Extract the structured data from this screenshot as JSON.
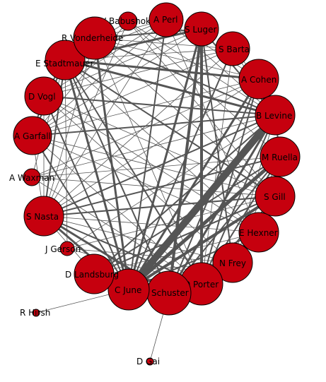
{
  "graph": {
    "node_color": "#c6000e",
    "edge_color": "#555555",
    "nodes": [
      {
        "id": "babushok",
        "label": "V Babushok",
        "weight": 1
      },
      {
        "id": "perl",
        "label": "A Perl",
        "weight": 3
      },
      {
        "id": "luger",
        "label": "S Luger",
        "weight": 4
      },
      {
        "id": "barta",
        "label": "S Barta",
        "weight": 3
      },
      {
        "id": "cohen",
        "label": "A Cohen",
        "weight": 4
      },
      {
        "id": "levine",
        "label": "B Levine",
        "weight": 4
      },
      {
        "id": "ruella",
        "label": "M Ruella",
        "weight": 4
      },
      {
        "id": "gill",
        "label": "S Gill",
        "weight": 4
      },
      {
        "id": "hexner",
        "label": "E Hexner",
        "weight": 4
      },
      {
        "id": "frey",
        "label": "N Frey",
        "weight": 4
      },
      {
        "id": "porter",
        "label": "D Porter",
        "weight": 4
      },
      {
        "id": "schuster",
        "label": "Schuster",
        "weight": 5
      },
      {
        "id": "june",
        "label": "C June",
        "weight": 5
      },
      {
        "id": "landsburg",
        "label": "D Landsburg",
        "weight": 4
      },
      {
        "id": "gerson",
        "label": "J Gerson",
        "weight": 1
      },
      {
        "id": "nasta",
        "label": "S Nasta",
        "weight": 4
      },
      {
        "id": "waxman",
        "label": "A Waxman",
        "weight": 1
      },
      {
        "id": "garfall",
        "label": "A Garfall",
        "weight": 4
      },
      {
        "id": "vogl",
        "label": "D Vogl",
        "weight": 4
      },
      {
        "id": "stadtmauer",
        "label": "E Stadtmauer",
        "weight": 5
      },
      {
        "id": "vonderheide",
        "label": "R Vonderheide",
        "weight": 4
      },
      {
        "id": "hirsh",
        "label": "R Hirsh",
        "weight": 0
      },
      {
        "id": "gai",
        "label": "D Gai",
        "weight": 0
      }
    ],
    "edges": [
      {
        "source": "june",
        "target": "levine",
        "weight": 9
      },
      {
        "source": "june",
        "target": "ruella",
        "weight": 5
      },
      {
        "source": "june",
        "target": "gill",
        "weight": 4
      },
      {
        "source": "june",
        "target": "luger",
        "weight": 3
      },
      {
        "source": "june",
        "target": "perl",
        "weight": 2
      },
      {
        "source": "june",
        "target": "cohen",
        "weight": 3
      },
      {
        "source": "june",
        "target": "barta",
        "weight": 2
      },
      {
        "source": "june",
        "target": "hexner",
        "weight": 2
      },
      {
        "source": "june",
        "target": "stadtmauer",
        "weight": 3
      },
      {
        "source": "june",
        "target": "vonderheide",
        "weight": 3
      },
      {
        "source": "june",
        "target": "nasta",
        "weight": 3
      },
      {
        "source": "june",
        "target": "vogl",
        "weight": 2
      },
      {
        "source": "june",
        "target": "garfall",
        "weight": 2
      },
      {
        "source": "june",
        "target": "landsburg",
        "weight": 3
      },
      {
        "source": "june",
        "target": "schuster",
        "weight": 3
      },
      {
        "source": "june",
        "target": "porter",
        "weight": 2
      },
      {
        "source": "june",
        "target": "frey",
        "weight": 2
      },
      {
        "source": "june",
        "target": "hirsh",
        "weight": 1
      },
      {
        "source": "schuster",
        "target": "luger",
        "weight": 4
      },
      {
        "source": "schuster",
        "target": "levine",
        "weight": 3
      },
      {
        "source": "schuster",
        "target": "porter",
        "weight": 3
      },
      {
        "source": "schuster",
        "target": "frey",
        "weight": 2
      },
      {
        "source": "schuster",
        "target": "nasta",
        "weight": 3
      },
      {
        "source": "schuster",
        "target": "landsburg",
        "weight": 2
      },
      {
        "source": "schuster",
        "target": "stadtmauer",
        "weight": 2
      },
      {
        "source": "schuster",
        "target": "cohen",
        "weight": 2
      },
      {
        "source": "schuster",
        "target": "ruella",
        "weight": 2
      },
      {
        "source": "schuster",
        "target": "gai",
        "weight": 1
      },
      {
        "source": "luger",
        "target": "porter",
        "weight": 4
      },
      {
        "source": "luger",
        "target": "stadtmauer",
        "weight": 3
      },
      {
        "source": "luger",
        "target": "vonderheide",
        "weight": 2
      },
      {
        "source": "luger",
        "target": "levine",
        "weight": 2
      },
      {
        "source": "luger",
        "target": "frey",
        "weight": 2
      },
      {
        "source": "luger",
        "target": "vogl",
        "weight": 1
      },
      {
        "source": "luger",
        "target": "garfall",
        "weight": 1
      },
      {
        "source": "levine",
        "target": "stadtmauer",
        "weight": 3
      },
      {
        "source": "levine",
        "target": "vogl",
        "weight": 2
      },
      {
        "source": "levine",
        "target": "garfall",
        "weight": 2
      },
      {
        "source": "levine",
        "target": "nasta",
        "weight": 2
      },
      {
        "source": "levine",
        "target": "porter",
        "weight": 2
      },
      {
        "source": "levine",
        "target": "vonderheide",
        "weight": 2
      },
      {
        "source": "levine",
        "target": "landsburg",
        "weight": 2
      },
      {
        "source": "levine",
        "target": "ruella",
        "weight": 2
      },
      {
        "source": "levine",
        "target": "frey",
        "weight": 1
      },
      {
        "source": "cohen",
        "target": "stadtmauer",
        "weight": 3
      },
      {
        "source": "cohen",
        "target": "porter",
        "weight": 2
      },
      {
        "source": "cohen",
        "target": "nasta",
        "weight": 1
      },
      {
        "source": "cohen",
        "target": "garfall",
        "weight": 1
      },
      {
        "source": "cohen",
        "target": "vonderheide",
        "weight": 1
      },
      {
        "source": "stadtmauer",
        "target": "vogl",
        "weight": 2
      },
      {
        "source": "stadtmauer",
        "target": "garfall",
        "weight": 2
      },
      {
        "source": "stadtmauer",
        "target": "nasta",
        "weight": 2
      },
      {
        "source": "stadtmauer",
        "target": "gill",
        "weight": 2
      },
      {
        "source": "stadtmauer",
        "target": "porter",
        "weight": 2
      },
      {
        "source": "stadtmauer",
        "target": "hexner",
        "weight": 1
      },
      {
        "source": "stadtmauer",
        "target": "perl",
        "weight": 1
      },
      {
        "source": "vonderheide",
        "target": "perl",
        "weight": 1
      },
      {
        "source": "vonderheide",
        "target": "barta",
        "weight": 1
      },
      {
        "source": "vonderheide",
        "target": "gill",
        "weight": 1
      },
      {
        "source": "vonderheide",
        "target": "nasta",
        "weight": 1
      },
      {
        "source": "vonderheide",
        "target": "porter",
        "weight": 1
      },
      {
        "source": "vogl",
        "target": "garfall",
        "weight": 2
      },
      {
        "source": "vogl",
        "target": "nasta",
        "weight": 1
      },
      {
        "source": "vogl",
        "target": "gill",
        "weight": 1
      },
      {
        "source": "vogl",
        "target": "hexner",
        "weight": 1
      },
      {
        "source": "vogl",
        "target": "frey",
        "weight": 1
      },
      {
        "source": "garfall",
        "target": "nasta",
        "weight": 1
      },
      {
        "source": "garfall",
        "target": "gill",
        "weight": 1
      },
      {
        "source": "garfall",
        "target": "hexner",
        "weight": 1
      },
      {
        "source": "garfall",
        "target": "porter",
        "weight": 1
      },
      {
        "source": "nasta",
        "target": "gill",
        "weight": 2
      },
      {
        "source": "nasta",
        "target": "ruella",
        "weight": 2
      },
      {
        "source": "nasta",
        "target": "porter",
        "weight": 2
      },
      {
        "source": "nasta",
        "target": "landsburg",
        "weight": 1
      },
      {
        "source": "nasta",
        "target": "frey",
        "weight": 1
      },
      {
        "source": "nasta",
        "target": "hexner",
        "weight": 1
      },
      {
        "source": "ruella",
        "target": "porter",
        "weight": 2
      },
      {
        "source": "ruella",
        "target": "landsburg",
        "weight": 2
      },
      {
        "source": "ruella",
        "target": "frey",
        "weight": 1
      },
      {
        "source": "ruella",
        "target": "gill",
        "weight": 1
      },
      {
        "source": "gill",
        "target": "porter",
        "weight": 2
      },
      {
        "source": "gill",
        "target": "landsburg",
        "weight": 2
      },
      {
        "source": "gill",
        "target": "frey",
        "weight": 1
      },
      {
        "source": "hexner",
        "target": "porter",
        "weight": 2
      },
      {
        "source": "hexner",
        "target": "landsburg",
        "weight": 1
      },
      {
        "source": "hexner",
        "target": "frey",
        "weight": 1
      },
      {
        "source": "frey",
        "target": "porter",
        "weight": 2
      },
      {
        "source": "frey",
        "target": "landsburg",
        "weight": 1
      },
      {
        "source": "porter",
        "target": "landsburg",
        "weight": 1
      },
      {
        "source": "perl",
        "target": "cohen",
        "weight": 1
      },
      {
        "source": "perl",
        "target": "levine",
        "weight": 1
      },
      {
        "source": "perl",
        "target": "garfall",
        "weight": 1
      },
      {
        "source": "perl",
        "target": "vogl",
        "weight": 1
      },
      {
        "source": "perl",
        "target": "nasta",
        "weight": 1
      },
      {
        "source": "perl",
        "target": "hexner",
        "weight": 1
      },
      {
        "source": "barta",
        "target": "cohen",
        "weight": 1
      },
      {
        "source": "barta",
        "target": "stadtmauer",
        "weight": 1
      },
      {
        "source": "barta",
        "target": "vogl",
        "weight": 1
      },
      {
        "source": "barta",
        "target": "garfall",
        "weight": 1
      },
      {
        "source": "barta",
        "target": "nasta",
        "weight": 1
      },
      {
        "source": "barta",
        "target": "porter",
        "weight": 1
      },
      {
        "source": "barta",
        "target": "levine",
        "weight": 1
      },
      {
        "source": "babushok",
        "target": "stadtmauer",
        "weight": 1
      },
      {
        "source": "babushok",
        "target": "levine",
        "weight": 1
      },
      {
        "source": "babushok",
        "target": "gill",
        "weight": 1
      },
      {
        "source": "babushok",
        "target": "nasta",
        "weight": 1
      },
      {
        "source": "babushok",
        "target": "garfall",
        "weight": 1
      },
      {
        "source": "babushok",
        "target": "ruella",
        "weight": 1
      },
      {
        "source": "waxman",
        "target": "levine",
        "weight": 1
      },
      {
        "source": "waxman",
        "target": "gill",
        "weight": 1
      },
      {
        "source": "waxman",
        "target": "ruella",
        "weight": 1
      },
      {
        "source": "waxman",
        "target": "porter",
        "weight": 1
      },
      {
        "source": "waxman",
        "target": "cohen",
        "weight": 1
      },
      {
        "source": "waxman",
        "target": "stadtmauer",
        "weight": 1
      },
      {
        "source": "gerson",
        "target": "levine",
        "weight": 1
      },
      {
        "source": "gerson",
        "target": "gill",
        "weight": 1
      },
      {
        "source": "gerson",
        "target": "porter",
        "weight": 1
      },
      {
        "source": "gerson",
        "target": "frey",
        "weight": 1
      },
      {
        "source": "gerson",
        "target": "stadtmauer",
        "weight": 1
      }
    ]
  }
}
